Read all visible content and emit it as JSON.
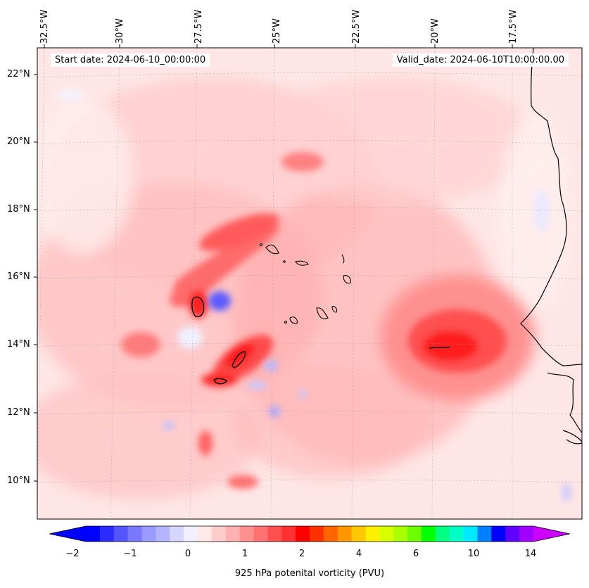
{
  "map": {
    "start_date_text": "Start date: 2024-06-10_00:00:00",
    "valid_date_text": "Valid_date: 2024-06-10T10:00:00.00",
    "lon_labels": [
      "32.5°W",
      "30°W",
      "27.5°W",
      "25°W",
      "22.5°W",
      "20°W",
      "17.5°W"
    ],
    "lat_labels": [
      "22°N",
      "20°N",
      "18°N",
      "16°N",
      "14°N",
      "12°N",
      "10°N"
    ],
    "colorbar": {
      "label": "925 hPa potenital vorticity (PVU)",
      "ticks": [
        "−2",
        "−1",
        "0",
        "1",
        "2",
        "4",
        "6",
        "10",
        "14"
      ],
      "colors": [
        "#0000ff",
        "#2b2bff",
        "#5555ff",
        "#7878ff",
        "#9999ff",
        "#b4b4ff",
        "#d6d6ff",
        "#f0f0ff",
        "#ffe8e8",
        "#ffcccc",
        "#ffb0b0",
        "#ff9090",
        "#ff7070",
        "#ff5050",
        "#ff3030",
        "#ff0000",
        "#ff3000",
        "#ff6400",
        "#ff9600",
        "#ffc800",
        "#fff000",
        "#d8ff00",
        "#a8ff00",
        "#6cff00",
        "#00ff00",
        "#00ff80",
        "#00ffc8",
        "#00e8ff",
        "#0080ff",
        "#0000ff",
        "#6000ff",
        "#a000ff"
      ],
      "end_low": "#0000ff",
      "end_high": "#cc00ff"
    }
  }
}
